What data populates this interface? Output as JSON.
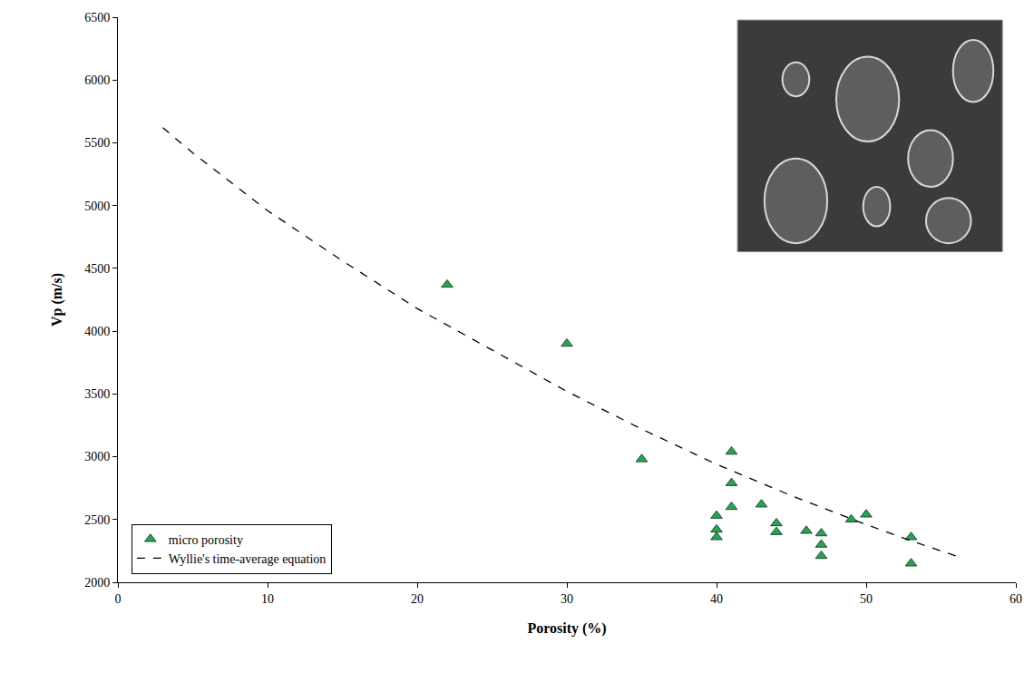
{
  "chart_data": {
    "type": "scatter",
    "x_label": "Porosity (%)",
    "y_label": "Vp (m/s)",
    "xlim": [
      0,
      60
    ],
    "xticks": [
      0,
      10,
      20,
      30,
      40,
      50,
      60
    ],
    "ylim": [
      2000,
      6500
    ],
    "yticks": [
      2000,
      2500,
      3000,
      3500,
      4000,
      4500,
      5000,
      5500,
      6000,
      6500
    ],
    "grid": false,
    "legend": "lower left",
    "series": [
      {
        "name": "micro porosity",
        "type": "scatter",
        "marker": "triangle-up",
        "color": "#2ca05a",
        "x": [
          22,
          30,
          35,
          40,
          40,
          40,
          41,
          41,
          41,
          43,
          44,
          44,
          46,
          47,
          47,
          47,
          49,
          50,
          53,
          53
        ],
        "values": [
          4370,
          3900,
          2980,
          2530,
          2420,
          2360,
          3040,
          2790,
          2600,
          2620,
          2470,
          2400,
          2410,
          2390,
          2300,
          2210,
          2500,
          2540,
          2360,
          2150
        ]
      },
      {
        "name": "Wyllie's time-average equation",
        "type": "line",
        "line_style": "dash",
        "color": "#000000",
        "x": [
          3,
          5,
          10,
          15,
          20,
          25,
          30,
          35,
          40,
          45,
          50,
          53,
          56
        ],
        "values": [
          5620,
          5420,
          4960,
          4560,
          4180,
          3850,
          3520,
          3220,
          2940,
          2690,
          2460,
          2330,
          2210
        ]
      }
    ]
  }
}
